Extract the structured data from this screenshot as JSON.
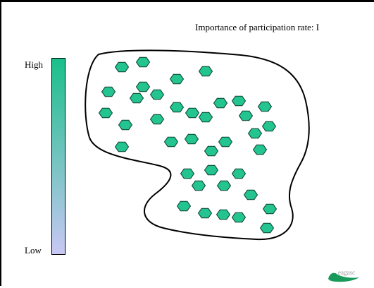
{
  "title": "Importance of participation rate: I",
  "scale": {
    "high_label": "High",
    "low_label": "Low",
    "high_color": "#1abf8a",
    "low_color": "#c8c8f4"
  },
  "colors": {
    "hexagon_fill": "#23c490",
    "hexagon_stroke": "#0b3d2c",
    "outline": "#000000"
  },
  "logo": {
    "text": "eagasc",
    "accent": "#1a9a5a",
    "text_color": "#9a9a9a"
  }
}
